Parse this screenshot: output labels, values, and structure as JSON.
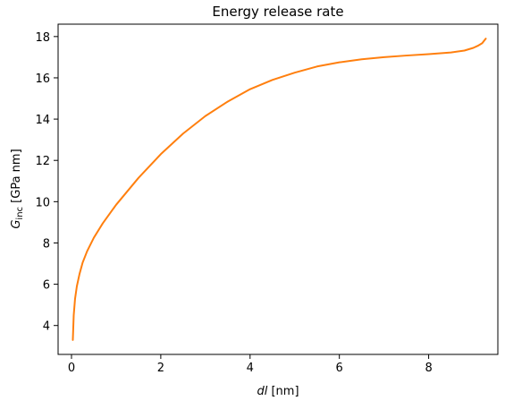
{
  "chart_data": {
    "type": "line",
    "title": "Energy release rate",
    "xlabel": {
      "symbol": "dl",
      "unit": " [nm]"
    },
    "ylabel": {
      "symbol": "G",
      "subscript": "inc",
      "unit": " [GPa nm]"
    },
    "xlim": [
      -0.3,
      9.55
    ],
    "ylim": [
      2.6,
      18.6
    ],
    "xticks": [
      0,
      2,
      4,
      6,
      8
    ],
    "yticks": [
      4,
      6,
      8,
      10,
      12,
      14,
      16,
      18
    ],
    "xtick_labels": [
      "0",
      "2",
      "4",
      "6",
      "8"
    ],
    "ytick_labels": [
      "4",
      "6",
      "8",
      "10",
      "12",
      "14",
      "16",
      "18"
    ],
    "grid": false,
    "legend": "none",
    "series": [
      {
        "color": "#ff7f0e",
        "x": [
          0.03,
          0.05,
          0.08,
          0.12,
          0.18,
          0.25,
          0.35,
          0.5,
          0.7,
          1.0,
          1.5,
          2.0,
          2.5,
          3.0,
          3.5,
          4.0,
          4.5,
          5.0,
          5.5,
          6.0,
          6.5,
          7.0,
          7.5,
          8.0,
          8.5,
          8.8,
          9.0,
          9.1,
          9.2,
          9.28
        ],
        "values": [
          3.3,
          4.5,
          5.3,
          5.9,
          6.5,
          7.05,
          7.6,
          8.25,
          8.95,
          9.85,
          11.15,
          12.3,
          13.3,
          14.15,
          14.85,
          15.45,
          15.9,
          16.25,
          16.55,
          16.75,
          16.9,
          17.0,
          17.08,
          17.15,
          17.23,
          17.32,
          17.45,
          17.55,
          17.68,
          17.9
        ]
      }
    ]
  }
}
